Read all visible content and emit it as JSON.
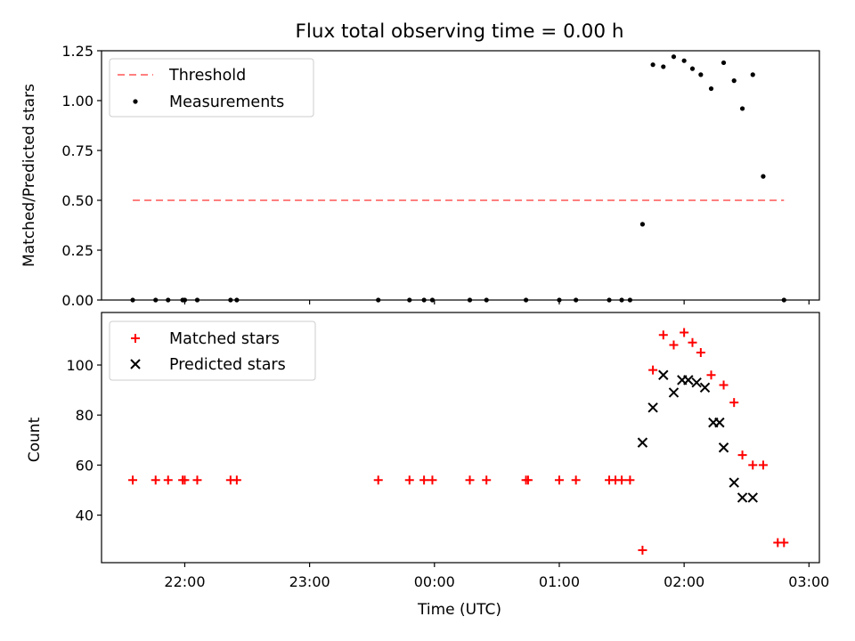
{
  "title": "Flux total observing time = 0.00 h",
  "chart_data": [
    {
      "type": "scatter",
      "xlabel": "",
      "ylabel": "Matched/Predicted stars",
      "xlim": [
        "21:20",
        "03:05"
      ],
      "ylim": [
        0,
        1.25
      ],
      "xticks": [
        "22:00",
        "23:00",
        "00:00",
        "01:00",
        "02:00",
        "03:00"
      ],
      "yticks": [
        "0.00",
        "0.25",
        "0.50",
        "0.75",
        "1.00",
        "1.25"
      ],
      "legend_position": "upper left",
      "grid": false,
      "series": [
        {
          "name": "Threshold",
          "kind": "line",
          "style": "dashed",
          "color": "#ff7f7f",
          "x": [
            "21:35",
            "02:48"
          ],
          "y": [
            0.5,
            0.5
          ]
        },
        {
          "name": "Measurements",
          "kind": "points",
          "marker": "dot",
          "color": "#000000",
          "x": [
            "21:35",
            "21:46",
            "21:52",
            "21:59",
            "22:00",
            "22:06",
            "22:22",
            "22:25",
            "23:33",
            "23:48",
            "23:55",
            "23:59",
            "00:17",
            "00:25",
            "00:44",
            "01:00",
            "01:08",
            "01:24",
            "01:30",
            "01:34",
            "01:40",
            "01:45",
            "01:50",
            "01:55",
            "02:00",
            "02:04",
            "02:08",
            "02:13",
            "02:19",
            "02:24",
            "02:28",
            "02:33",
            "02:38",
            "02:48"
          ],
          "y": [
            0,
            0,
            0,
            0,
            0,
            0,
            0,
            0,
            0,
            0,
            0,
            0,
            0,
            0,
            0,
            0,
            0,
            0,
            0,
            0,
            0.38,
            1.18,
            1.17,
            1.22,
            1.2,
            1.16,
            1.13,
            1.06,
            1.19,
            1.1,
            0.96,
            1.13,
            0.62,
            0
          ]
        }
      ]
    },
    {
      "type": "scatter",
      "xlabel": "Time (UTC)",
      "ylabel": "Count",
      "xlim": [
        "21:20",
        "03:05"
      ],
      "ylim": [
        21,
        121
      ],
      "xticks": [
        "22:00",
        "23:00",
        "00:00",
        "01:00",
        "02:00",
        "03:00"
      ],
      "yticks": [
        "40",
        "60",
        "80",
        "100"
      ],
      "legend_position": "upper left",
      "grid": false,
      "series": [
        {
          "name": "Matched stars",
          "marker": "plus",
          "color": "#ff0000",
          "x": [
            "21:35",
            "21:46",
            "21:52",
            "21:59",
            "22:00",
            "22:06",
            "22:22",
            "22:25",
            "23:33",
            "23:48",
            "23:55",
            "23:59",
            "00:17",
            "00:25",
            "00:44",
            "00:45",
            "01:00",
            "01:08",
            "01:24",
            "01:27",
            "01:30",
            "01:34",
            "01:40",
            "01:45",
            "01:50",
            "01:55",
            "02:00",
            "02:04",
            "02:08",
            "02:13",
            "02:19",
            "02:24",
            "02:28",
            "02:33",
            "02:38",
            "02:45",
            "02:48"
          ],
          "y": [
            54,
            54,
            54,
            54,
            54,
            54,
            54,
            54,
            54,
            54,
            54,
            54,
            54,
            54,
            54,
            54,
            54,
            54,
            54,
            54,
            54,
            54,
            26,
            98,
            112,
            108,
            113,
            109,
            105,
            96,
            92,
            85,
            64,
            60,
            60,
            29,
            29
          ]
        },
        {
          "name": "Predicted stars",
          "marker": "x",
          "color": "#000000",
          "x": [
            "01:40",
            "01:45",
            "01:50",
            "01:55",
            "01:59",
            "02:02",
            "02:06",
            "02:10",
            "02:14",
            "02:17",
            "02:19",
            "02:24",
            "02:28",
            "02:33"
          ],
          "y": [
            69,
            83,
            96,
            89,
            94,
            94,
            93,
            91,
            77,
            77,
            67,
            53,
            47,
            47
          ]
        }
      ]
    }
  ]
}
